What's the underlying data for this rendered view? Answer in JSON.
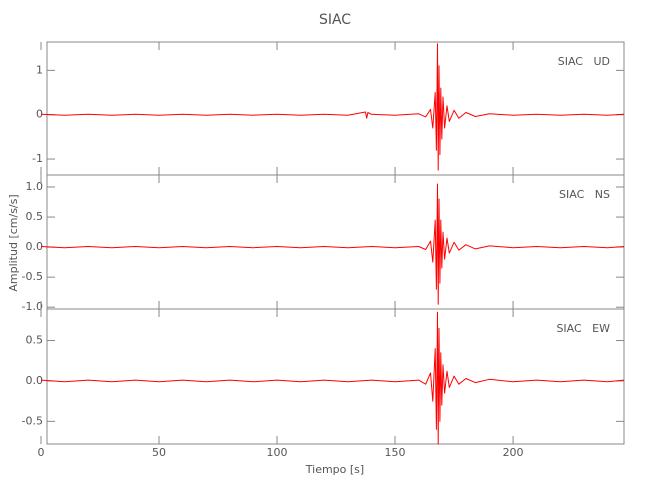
{
  "title": "SIAC",
  "y_label": "Amplitud [cm/s/s]",
  "chart_data": [
    {
      "type": "line",
      "annotation": "SIAC   UD",
      "color": "#ff0000",
      "xlim": [
        0,
        247
      ],
      "ylim": [
        -1.36,
        1.64
      ],
      "xticks": [
        0,
        50,
        100,
        150,
        200
      ],
      "yticks": [
        -1,
        0,
        1
      ],
      "x": [
        0,
        10,
        20,
        30,
        40,
        50,
        60,
        70,
        80,
        90,
        100,
        110,
        120,
        130,
        137.5,
        138,
        138.5,
        140,
        150,
        160,
        163,
        165,
        166,
        167,
        167.5,
        168,
        168.3,
        168.6,
        169,
        169.4,
        169.8,
        170.3,
        171,
        172,
        173,
        175,
        177,
        180,
        184,
        190,
        200,
        210,
        220,
        230,
        240,
        247
      ],
      "values": [
        0.01,
        -0.01,
        0.01,
        -0.01,
        0.01,
        -0.01,
        0.01,
        -0.01,
        0.01,
        -0.01,
        0.01,
        -0.01,
        0.01,
        -0.01,
        0.06,
        -0.08,
        0.05,
        0.01,
        -0.01,
        0.02,
        -0.05,
        0.12,
        -0.3,
        0.5,
        -0.8,
        1.6,
        -1.25,
        1.1,
        -0.9,
        0.6,
        -0.55,
        0.4,
        -0.3,
        0.2,
        -0.15,
        0.1,
        -0.08,
        0.05,
        -0.04,
        0.02,
        -0.01,
        0.01,
        -0.01,
        0.01,
        -0.01,
        0.01
      ]
    },
    {
      "type": "line",
      "annotation": "SIAC   NS",
      "color": "#ff0000",
      "xlim": [
        0,
        247
      ],
      "ylim": [
        -1.03,
        1.2
      ],
      "xticks": [
        0,
        50,
        100,
        150,
        200
      ],
      "yticks": [
        {
          "value": -1,
          "label": "-1.0"
        },
        -0.5,
        {
          "value": 0,
          "label": "0.0"
        },
        0.5,
        {
          "value": 1,
          "label": "1.0"
        }
      ],
      "x": [
        0,
        10,
        20,
        30,
        40,
        50,
        60,
        70,
        80,
        90,
        100,
        110,
        120,
        130,
        140,
        150,
        160,
        163,
        165,
        166,
        167,
        167.5,
        168,
        168.3,
        168.6,
        169,
        169.4,
        169.8,
        170.3,
        171,
        172,
        173,
        175,
        177,
        180,
        184,
        190,
        200,
        210,
        220,
        230,
        240,
        247
      ],
      "values": [
        0.01,
        -0.01,
        0.01,
        -0.01,
        0.01,
        -0.01,
        0.01,
        -0.01,
        0.01,
        -0.01,
        0.01,
        -0.01,
        0.01,
        -0.01,
        0.01,
        -0.01,
        0.01,
        -0.04,
        0.1,
        -0.25,
        0.45,
        -0.7,
        1.05,
        -0.95,
        0.8,
        -0.6,
        0.45,
        -0.35,
        0.25,
        -0.2,
        0.15,
        -0.1,
        0.08,
        -0.05,
        0.04,
        -0.03,
        0.02,
        -0.01,
        0.01,
        -0.01,
        0.01,
        -0.01,
        0.01
      ]
    },
    {
      "type": "line",
      "annotation": "SIAC   EW",
      "color": "#ff0000",
      "x_label": "Tiempo [s]",
      "xlim": [
        0,
        247
      ],
      "ylim": [
        -0.78,
        0.89
      ],
      "xticks": [
        0,
        50,
        100,
        150,
        200
      ],
      "yticks": [
        -0.5,
        {
          "value": 0,
          "label": "0.0"
        },
        0.5
      ],
      "x": [
        0,
        10,
        20,
        30,
        40,
        50,
        60,
        70,
        80,
        90,
        100,
        110,
        120,
        130,
        140,
        150,
        160,
        163,
        165,
        166,
        167,
        167.5,
        168,
        168.3,
        168.6,
        169,
        169.4,
        169.8,
        170.3,
        171,
        172,
        173,
        175,
        177,
        180,
        184,
        190,
        200,
        210,
        220,
        230,
        240,
        247
      ],
      "values": [
        0.01,
        -0.01,
        0.01,
        -0.01,
        0.01,
        -0.01,
        0.01,
        -0.01,
        0.01,
        -0.01,
        0.01,
        -0.01,
        0.01,
        -0.01,
        0.01,
        -0.01,
        0.01,
        -0.04,
        0.1,
        -0.25,
        0.4,
        -0.6,
        0.85,
        -0.78,
        0.65,
        -0.5,
        0.35,
        -0.3,
        0.2,
        -0.15,
        0.12,
        -0.08,
        0.06,
        -0.04,
        0.03,
        -0.02,
        0.02,
        -0.01,
        0.01,
        -0.01,
        0.01,
        -0.01,
        0.01
      ]
    }
  ]
}
